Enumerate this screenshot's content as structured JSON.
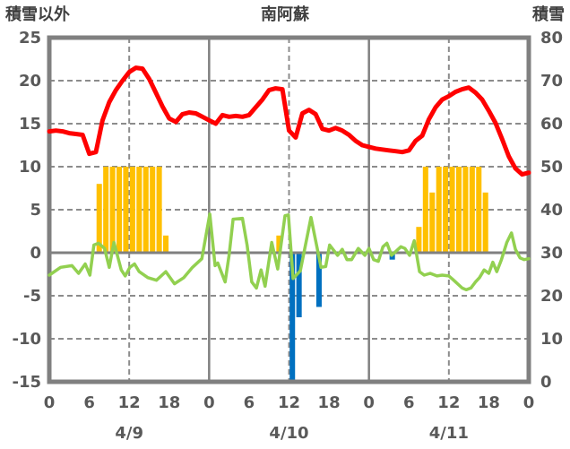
{
  "chart_data": {
    "type": "combo",
    "title": "南阿蘇",
    "t_unit": "hours since 4/9 00:00",
    "x_axis": {
      "range_hours": [
        0,
        72
      ],
      "tick_interval_hours": 6,
      "hour_tick_labels": [
        "0",
        "6",
        "12",
        "18",
        "0",
        "6",
        "12",
        "18",
        "0",
        "6",
        "12",
        "18",
        "0"
      ],
      "day_labels": [
        {
          "t": 12,
          "label": "4/9"
        },
        {
          "t": 36,
          "label": "4/10"
        },
        {
          "t": 60,
          "label": "4/11"
        }
      ]
    },
    "left_axis": {
      "title": "積雪以外",
      "max": 25,
      "min": -15,
      "tick_step": 5,
      "ticks": [
        "25",
        "20",
        "15",
        "10",
        "5",
        "0",
        "-5",
        "-10",
        "-15"
      ]
    },
    "right_axis": {
      "title": "積雪",
      "max": 80,
      "min": 0,
      "tick_step": 10,
      "ticks": [
        "80",
        "70",
        "60",
        "50",
        "40",
        "30",
        "20",
        "10",
        "0"
      ]
    },
    "grid": {
      "h_dashed_values": [
        20,
        15,
        10,
        5,
        -5,
        -10
      ],
      "v_dashed_hours": [
        12,
        36,
        60
      ],
      "v_solid_hours": [
        24,
        48
      ],
      "zero_line_value": 0
    },
    "series": [
      {
        "name": "red-line",
        "type": "line",
        "axis": "left",
        "color": "#FF0000",
        "points": [
          [
            0,
            14.1
          ],
          [
            1,
            14.2
          ],
          [
            2,
            14.1
          ],
          [
            3,
            13.9
          ],
          [
            4,
            13.8
          ],
          [
            5,
            13.7
          ],
          [
            6,
            11.5
          ],
          [
            7,
            11.7
          ],
          [
            8,
            15.4
          ],
          [
            9,
            17.5
          ],
          [
            10,
            18.9
          ],
          [
            11,
            20.0
          ],
          [
            12,
            21.0
          ],
          [
            13,
            21.5
          ],
          [
            14,
            21.4
          ],
          [
            15,
            20.2
          ],
          [
            16,
            18.6
          ],
          [
            17,
            17.0
          ],
          [
            18,
            15.6
          ],
          [
            19,
            15.2
          ],
          [
            20,
            16.1
          ],
          [
            21,
            16.3
          ],
          [
            22,
            16.2
          ],
          [
            23,
            15.8
          ],
          [
            24,
            15.4
          ],
          [
            25,
            15.0
          ],
          [
            26,
            16.0
          ],
          [
            27,
            15.8
          ],
          [
            28,
            15.9
          ],
          [
            29,
            15.8
          ],
          [
            30,
            16.0
          ],
          [
            31,
            16.9
          ],
          [
            32,
            17.8
          ],
          [
            33,
            18.9
          ],
          [
            34,
            19.1
          ],
          [
            35,
            19.0
          ],
          [
            36,
            14.2
          ],
          [
            37,
            13.4
          ],
          [
            38,
            16.2
          ],
          [
            39,
            16.6
          ],
          [
            40,
            16.1
          ],
          [
            41,
            14.4
          ],
          [
            42,
            14.2
          ],
          [
            43,
            14.5
          ],
          [
            44,
            14.2
          ],
          [
            45,
            13.7
          ],
          [
            46,
            13.0
          ],
          [
            47,
            12.5
          ],
          [
            48,
            12.3
          ],
          [
            49,
            12.1
          ],
          [
            50,
            12.0
          ],
          [
            51,
            11.9
          ],
          [
            52,
            11.8
          ],
          [
            53,
            11.7
          ],
          [
            54,
            11.9
          ],
          [
            55,
            13.0
          ],
          [
            56,
            13.6
          ],
          [
            57,
            15.5
          ],
          [
            58,
            16.9
          ],
          [
            59,
            17.8
          ],
          [
            60,
            18.2
          ],
          [
            61,
            18.7
          ],
          [
            62,
            19.0
          ],
          [
            63,
            19.2
          ],
          [
            64,
            18.6
          ],
          [
            65,
            17.8
          ],
          [
            66,
            16.5
          ],
          [
            67,
            15.1
          ],
          [
            68,
            13.2
          ],
          [
            69,
            11.2
          ],
          [
            70,
            9.8
          ],
          [
            71,
            9.1
          ],
          [
            72,
            9.3
          ]
        ]
      },
      {
        "name": "green-line",
        "type": "line",
        "axis": "left",
        "color": "#92D050",
        "points": [
          [
            0,
            -2.6
          ],
          [
            1.7,
            -1.7
          ],
          [
            3.4,
            -1.5
          ],
          [
            4.4,
            -2.4
          ],
          [
            5.4,
            -1.3
          ],
          [
            6.1,
            -2.6
          ],
          [
            6.7,
            0.9
          ],
          [
            7.4,
            1.1
          ],
          [
            8.3,
            0.5
          ],
          [
            9,
            -1.7
          ],
          [
            9.7,
            1.2
          ],
          [
            10.8,
            -2.0
          ],
          [
            11.4,
            -2.7
          ],
          [
            12.1,
            -1.7
          ],
          [
            12.8,
            -1.3
          ],
          [
            13.5,
            -2.2
          ],
          [
            14.8,
            -2.9
          ],
          [
            16.1,
            -3.2
          ],
          [
            17.5,
            -2.2
          ],
          [
            18.8,
            -3.6
          ],
          [
            20.2,
            -2.9
          ],
          [
            21.5,
            -1.7
          ],
          [
            22.9,
            -0.7
          ],
          [
            24.1,
            4.5
          ],
          [
            24.9,
            -1.5
          ],
          [
            25.3,
            -1.2
          ],
          [
            26.4,
            -3.4
          ],
          [
            27,
            -0.3
          ],
          [
            27.6,
            3.9
          ],
          [
            29,
            4.0
          ],
          [
            29.7,
            0.9
          ],
          [
            30.4,
            -3.4
          ],
          [
            31.1,
            -4.1
          ],
          [
            31.8,
            -2.0
          ],
          [
            32.4,
            -3.9
          ],
          [
            33.4,
            1.2
          ],
          [
            34.3,
            -1.9
          ],
          [
            35.4,
            4.3
          ],
          [
            35.9,
            4.4
          ],
          [
            36.6,
            -3.0
          ],
          [
            37.7,
            -2.1
          ],
          [
            39.3,
            4.1
          ],
          [
            40.8,
            -1.7
          ],
          [
            41.5,
            -1.6
          ],
          [
            42.1,
            0.9
          ],
          [
            43.3,
            -0.3
          ],
          [
            44,
            0.4
          ],
          [
            44.7,
            -0.8
          ],
          [
            45.4,
            -0.8
          ],
          [
            46.4,
            0.5
          ],
          [
            47.4,
            -0.3
          ],
          [
            48,
            0.5
          ],
          [
            48.7,
            -0.8
          ],
          [
            49.4,
            -1.0
          ],
          [
            50.1,
            0.7
          ],
          [
            50.7,
            1.1
          ],
          [
            51.4,
            -0.3
          ],
          [
            52.8,
            0.7
          ],
          [
            53.4,
            0.5
          ],
          [
            54.1,
            -0.3
          ],
          [
            54.8,
            1.4
          ],
          [
            55.6,
            -2.2
          ],
          [
            56.3,
            -2.6
          ],
          [
            57.2,
            -2.4
          ],
          [
            58.2,
            -2.7
          ],
          [
            59,
            -2.6
          ],
          [
            60,
            -2.7
          ],
          [
            60.6,
            -3.1
          ],
          [
            61.3,
            -3.6
          ],
          [
            62,
            -4.1
          ],
          [
            62.6,
            -4.3
          ],
          [
            63.3,
            -4.1
          ],
          [
            64,
            -3.4
          ],
          [
            64.6,
            -2.9
          ],
          [
            65.3,
            -2.0
          ],
          [
            66,
            -2.4
          ],
          [
            66.6,
            -1.1
          ],
          [
            67.2,
            -2.2
          ],
          [
            67.9,
            -0.8
          ],
          [
            68.7,
            1.2
          ],
          [
            69.4,
            2.3
          ],
          [
            70,
            0.4
          ],
          [
            70.7,
            -0.6
          ],
          [
            71.3,
            -0.8
          ],
          [
            72,
            -0.7
          ]
        ]
      },
      {
        "name": "orange-bars",
        "type": "bar",
        "axis": "left",
        "direction": "up",
        "color": "#FFC000",
        "bars": [
          [
            7,
            8
          ],
          [
            8,
            10
          ],
          [
            9,
            10
          ],
          [
            10,
            10
          ],
          [
            11,
            10
          ],
          [
            12,
            10
          ],
          [
            13,
            10
          ],
          [
            14,
            10
          ],
          [
            15,
            10
          ],
          [
            16,
            10
          ],
          [
            17,
            2
          ],
          [
            34,
            2
          ],
          [
            55,
            3
          ],
          [
            56,
            10
          ],
          [
            57,
            7
          ],
          [
            58,
            10
          ],
          [
            59,
            10
          ],
          [
            60,
            10
          ],
          [
            61,
            10
          ],
          [
            62,
            10
          ],
          [
            63,
            10
          ],
          [
            64,
            10
          ],
          [
            65,
            7
          ]
        ]
      },
      {
        "name": "blue-bars",
        "type": "bar",
        "axis": "left",
        "direction": "down",
        "color": "#0070C0",
        "bars": [
          [
            36,
            15
          ],
          [
            37,
            7.5
          ],
          [
            40,
            6.3
          ],
          [
            51,
            0.8
          ]
        ]
      }
    ],
    "colors": {
      "grid": "#8C8C8C",
      "axis": "#808080",
      "tick_text": "#595959",
      "title_text": "#404040",
      "background": "#FFFFFF"
    }
  }
}
